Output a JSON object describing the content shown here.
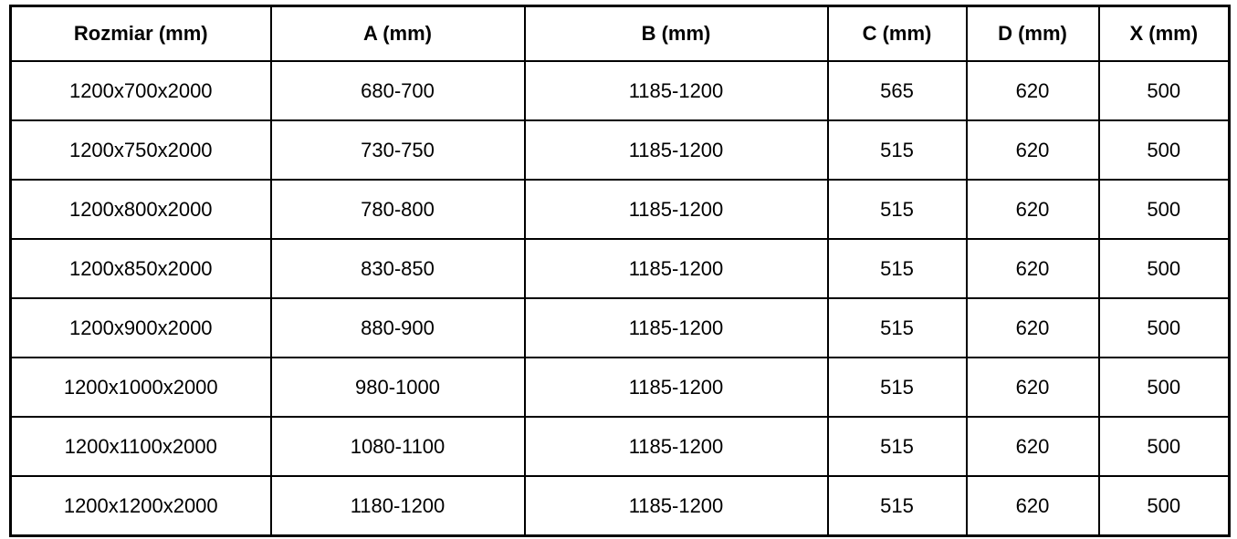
{
  "table": {
    "columns": [
      "Rozmiar (mm)",
      "A (mm)",
      "B (mm)",
      "C (mm)",
      "D (mm)",
      "X (mm)"
    ],
    "rows": [
      [
        "1200x700x2000",
        "680-700",
        "1185-1200",
        "565",
        "620",
        "500"
      ],
      [
        "1200x750x2000",
        "730-750",
        "1185-1200",
        "515",
        "620",
        "500"
      ],
      [
        "1200x800x2000",
        "780-800",
        "1185-1200",
        "515",
        "620",
        "500"
      ],
      [
        "1200x850x2000",
        "830-850",
        "1185-1200",
        "515",
        "620",
        "500"
      ],
      [
        "1200x900x2000",
        "880-900",
        "1185-1200",
        "515",
        "620",
        "500"
      ],
      [
        "1200x1000x2000",
        "980-1000",
        "1185-1200",
        "515",
        "620",
        "500"
      ],
      [
        "1200x1100x2000",
        "1080-1100",
        "1185-1200",
        "515",
        "620",
        "500"
      ],
      [
        "1200x1200x2000",
        "1180-1200",
        "1185-1200",
        "515",
        "620",
        "500"
      ]
    ]
  },
  "colors": {
    "border": "#000000",
    "background": "#ffffff",
    "text": "#000000"
  }
}
